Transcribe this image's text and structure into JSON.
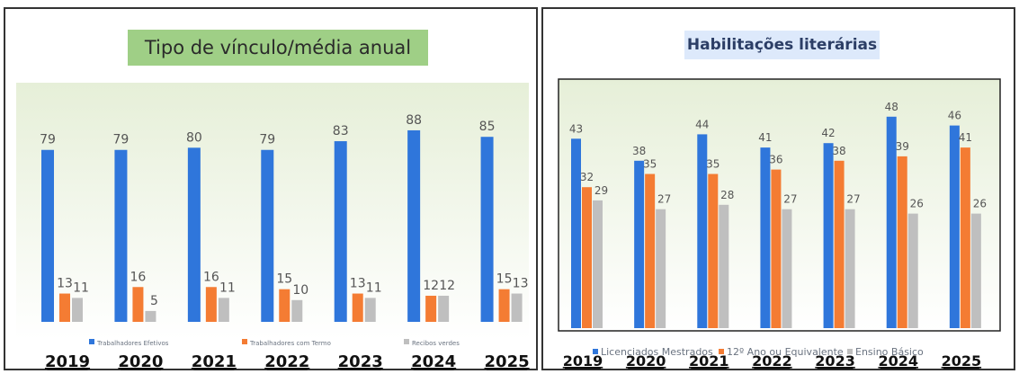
{
  "colors": {
    "blue": "#2f76db",
    "orange": "#f47c33",
    "gray": "#bfbfbf",
    "left_title_bg": "#9fcf86",
    "right_title_bg": "#dde9fb"
  },
  "chart_data": [
    {
      "type": "bar",
      "title": "Tipo de vínculo/média anual",
      "categories": [
        "2019",
        "2020",
        "2021",
        "2022",
        "2023",
        "2024",
        "2025"
      ],
      "series": [
        {
          "name": "Trabalhadores Efetivos",
          "color": "#2f76db",
          "values": [
            79,
            79,
            80,
            79,
            83,
            88,
            85
          ]
        },
        {
          "name": "Trabalhadores com Termo",
          "color": "#f47c33",
          "values": [
            13,
            16,
            16,
            15,
            13,
            12,
            15
          ]
        },
        {
          "name": "Recibos verdes",
          "color": "#bfbfbf",
          "values": [
            11,
            5,
            11,
            10,
            11,
            12,
            13
          ]
        }
      ],
      "xlabel": "",
      "ylabel": "",
      "ylim": [
        0,
        95
      ],
      "grid": false,
      "legend": "bottom"
    },
    {
      "type": "bar",
      "title": "Habilitações literárias",
      "categories": [
        "2019",
        "2020",
        "2021",
        "2022",
        "2023",
        "2024",
        "2025"
      ],
      "series": [
        {
          "name": "Licenciados Mestrados",
          "color": "#2f76db",
          "values": [
            43,
            38,
            44,
            41,
            42,
            48,
            46
          ]
        },
        {
          "name": "12º Ano ou Equivalente",
          "color": "#f47c33",
          "values": [
            32,
            35,
            35,
            36,
            38,
            39,
            41
          ]
        },
        {
          "name": "Ensino Básico",
          "color": "#bfbfbf",
          "values": [
            29,
            27,
            28,
            27,
            27,
            26,
            26
          ]
        }
      ],
      "xlabel": "",
      "ylabel": "",
      "ylim": [
        0,
        50
      ],
      "grid": false,
      "legend": "bottom"
    }
  ]
}
